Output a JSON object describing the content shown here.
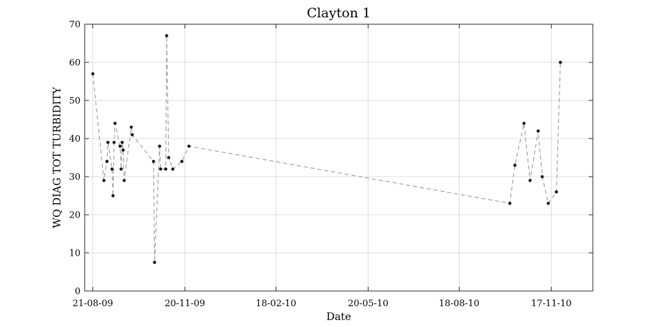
{
  "chart_data": {
    "type": "line",
    "title": "Clayton 1",
    "xlabel": "Date",
    "ylabel": "WQ DIAG TOT TURBIDITY",
    "x_axis_type": "date",
    "xlim": [
      "2009-08-13",
      "2010-12-28"
    ],
    "ylim": [
      0,
      70
    ],
    "x_ticks": [
      "2009-08-21",
      "2009-11-20",
      "2010-02-18",
      "2010-05-20",
      "2010-08-18",
      "2010-11-17"
    ],
    "x_tick_labels": [
      "21-08-09",
      "20-11-09",
      "18-02-10",
      "20-05-10",
      "18-08-10",
      "17-11-10"
    ],
    "y_ticks": [
      0,
      10,
      20,
      30,
      40,
      50,
      60,
      70
    ],
    "grid": true,
    "line_style": "dashed",
    "marker": "dot",
    "series": [
      {
        "color": "#9a9a9a",
        "marker_color": "#1a1a1a",
        "points": [
          {
            "x": "2009-08-21",
            "y": 57
          },
          {
            "x": "2009-09-01",
            "y": 29
          },
          {
            "x": "2009-09-04",
            "y": 34
          },
          {
            "x": "2009-09-05",
            "y": 39
          },
          {
            "x": "2009-09-09",
            "y": 32
          },
          {
            "x": "2009-09-10",
            "y": 25
          },
          {
            "x": "2009-09-11",
            "y": 39
          },
          {
            "x": "2009-09-12",
            "y": 44
          },
          {
            "x": "2009-09-17",
            "y": 38
          },
          {
            "x": "2009-09-18",
            "y": 32
          },
          {
            "x": "2009-09-19",
            "y": 39
          },
          {
            "x": "2009-09-20",
            "y": 37
          },
          {
            "x": "2009-09-21",
            "y": 29
          },
          {
            "x": "2009-09-28",
            "y": 43
          },
          {
            "x": "2009-09-29",
            "y": 41
          },
          {
            "x": "2009-10-20",
            "y": 34
          },
          {
            "x": "2009-10-21",
            "y": 7.5
          },
          {
            "x": "2009-10-26",
            "y": 38
          },
          {
            "x": "2009-10-27",
            "y": 32
          },
          {
            "x": "2009-11-01",
            "y": 32
          },
          {
            "x": "2009-11-02",
            "y": 67
          },
          {
            "x": "2009-11-04",
            "y": 35
          },
          {
            "x": "2009-11-08",
            "y": 32
          },
          {
            "x": "2009-11-17",
            "y": 34
          },
          {
            "x": "2009-11-24",
            "y": 38
          },
          {
            "x": "2010-10-07",
            "y": 23
          },
          {
            "x": "2010-10-12",
            "y": 33
          },
          {
            "x": "2010-10-21",
            "y": 44
          },
          {
            "x": "2010-10-27",
            "y": 29
          },
          {
            "x": "2010-11-04",
            "y": 42
          },
          {
            "x": "2010-11-08",
            "y": 30
          },
          {
            "x": "2010-11-14",
            "y": 23
          },
          {
            "x": "2010-11-22",
            "y": 26
          },
          {
            "x": "2010-11-26",
            "y": 60
          }
        ]
      }
    ]
  }
}
